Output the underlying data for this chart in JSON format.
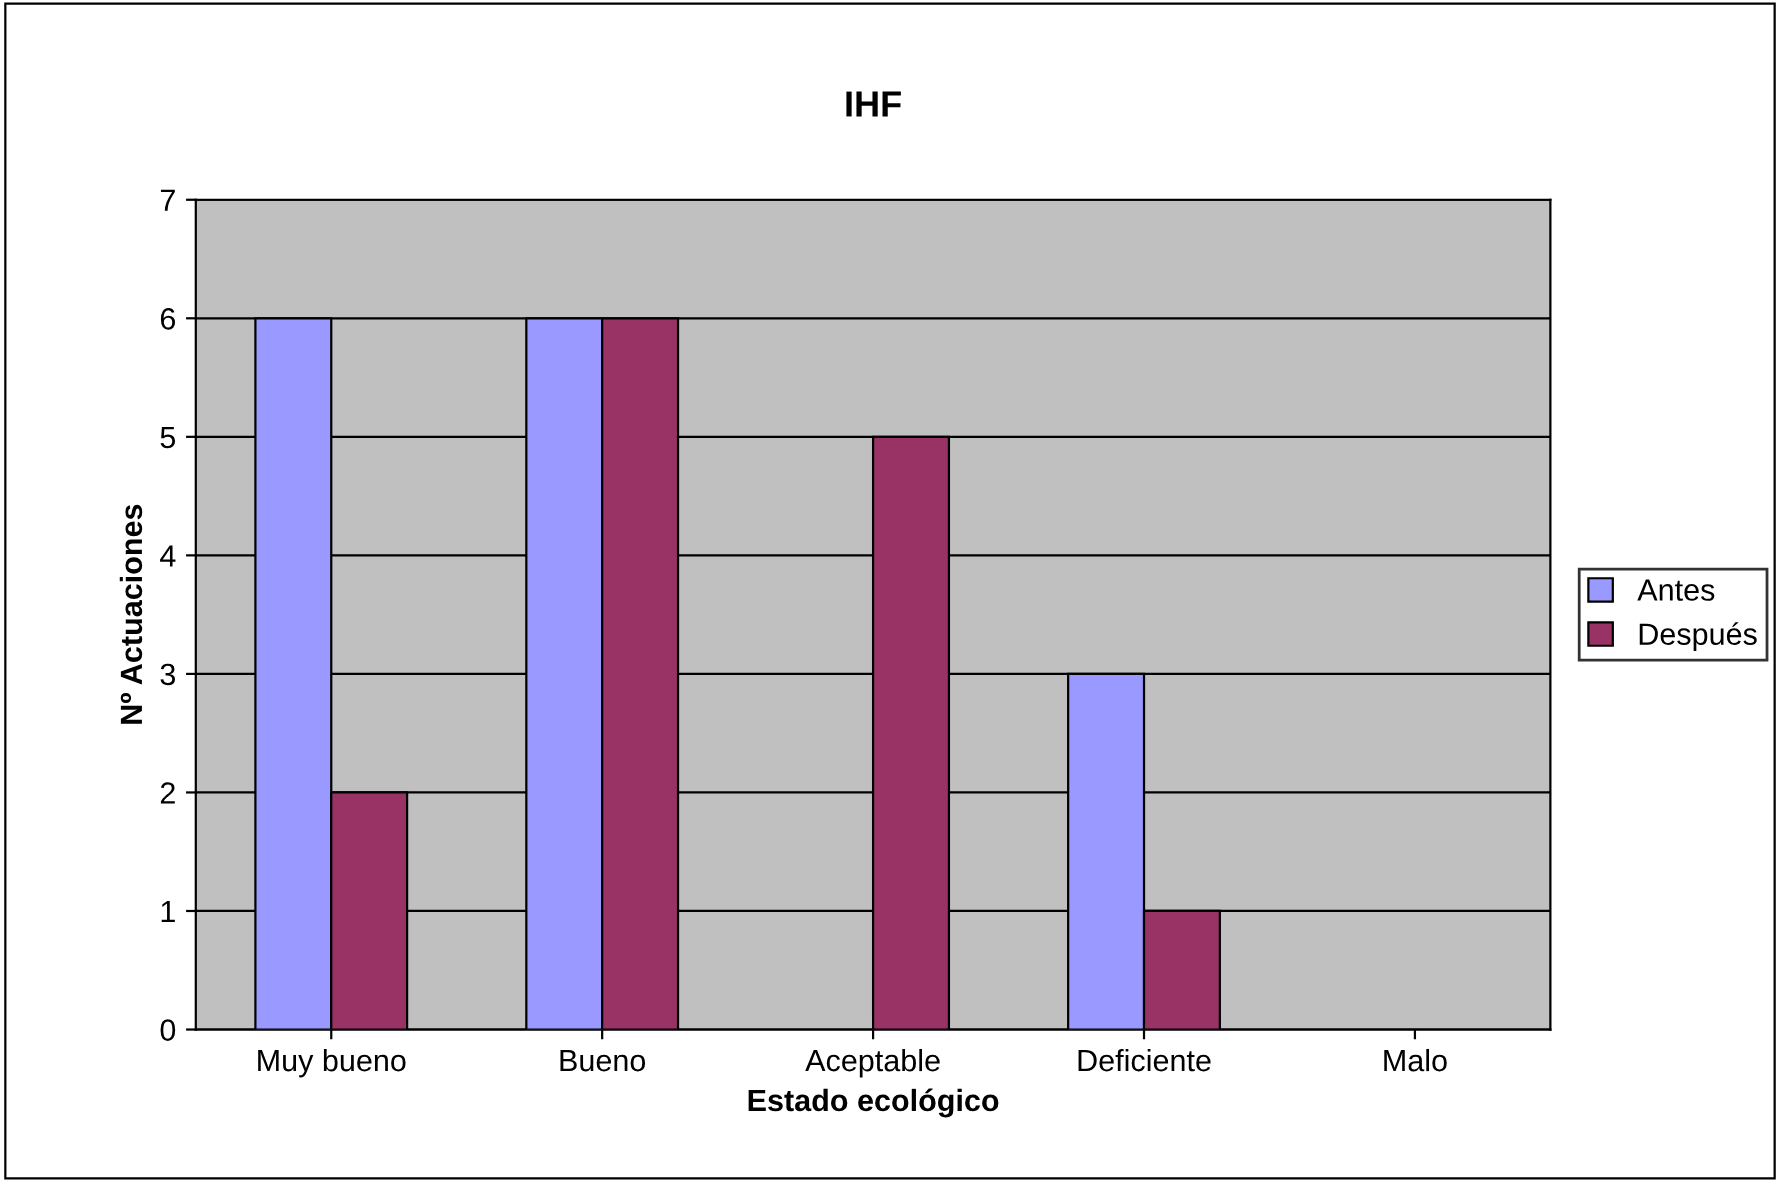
{
  "chart_data": {
    "type": "bar",
    "title": "IHF",
    "xlabel": "Estado ecológico",
    "ylabel": "Nº Actuaciones",
    "categories": [
      "Muy bueno",
      "Bueno",
      "Aceptable",
      "Deficiente",
      "Malo"
    ],
    "series": [
      {
        "name": "Antes",
        "color": "#9999ff",
        "values": [
          6,
          6,
          null,
          3,
          null
        ]
      },
      {
        "name": "Después",
        "color": "#993366",
        "values": [
          2,
          6,
          5,
          1,
          null
        ]
      }
    ],
    "ylim": [
      0,
      7
    ],
    "yticks": [
      0,
      1,
      2,
      3,
      4,
      5,
      6,
      7
    ],
    "grid": "y",
    "legend": "right"
  }
}
